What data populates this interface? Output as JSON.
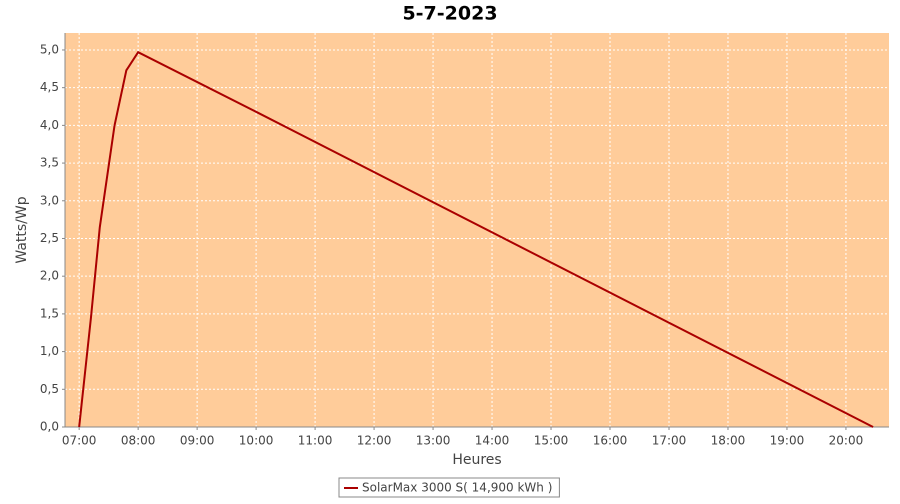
{
  "chart_data": {
    "type": "line",
    "title": "5-7-2023",
    "x_label": "Heures",
    "y_label": "Watts/Wp",
    "x": [
      7.0,
      7.2,
      7.35,
      7.6,
      7.8,
      8.0,
      10.0,
      20.46
    ],
    "series": [
      {
        "name": "SolarMax 3000 S( 14,900 kWh )",
        "color": "#aa0000",
        "values": [
          0,
          1.45,
          2.65,
          4.0,
          4.73,
          4.97,
          4.18,
          0
        ]
      }
    ],
    "xlim": [
      6.76,
      20.73
    ],
    "xticks": [
      {
        "value": 7,
        "label": "07:00"
      },
      {
        "value": 8,
        "label": "08:00"
      },
      {
        "value": 9,
        "label": "09:00"
      },
      {
        "value": 10,
        "label": "10:00"
      },
      {
        "value": 11,
        "label": "11:00"
      },
      {
        "value": 12,
        "label": "12:00"
      },
      {
        "value": 13,
        "label": "13:00"
      },
      {
        "value": 14,
        "label": "14:00"
      },
      {
        "value": 15,
        "label": "15:00"
      },
      {
        "value": 16,
        "label": "16:00"
      },
      {
        "value": 17,
        "label": "17:00"
      },
      {
        "value": 18,
        "label": "18:00"
      },
      {
        "value": 19,
        "label": "19:00"
      },
      {
        "value": 20,
        "label": "20:00"
      }
    ],
    "ylim": [
      0,
      5.225
    ],
    "yticks": [
      {
        "value": 0,
        "label": "0,0"
      },
      {
        "value": 0.5,
        "label": "0,5"
      },
      {
        "value": 1,
        "label": "1,0"
      },
      {
        "value": 1.5,
        "label": "1,5"
      },
      {
        "value": 2,
        "label": "2,0"
      },
      {
        "value": 2.5,
        "label": "2,5"
      },
      {
        "value": 3,
        "label": "3,0"
      },
      {
        "value": 3.5,
        "label": "3,5"
      },
      {
        "value": 4,
        "label": "4,0"
      },
      {
        "value": 4.5,
        "label": "4,5"
      },
      {
        "value": 5,
        "label": "5,0"
      }
    ],
    "grid": true,
    "plot_background": "#ffcc9a",
    "legend": "bottom"
  }
}
